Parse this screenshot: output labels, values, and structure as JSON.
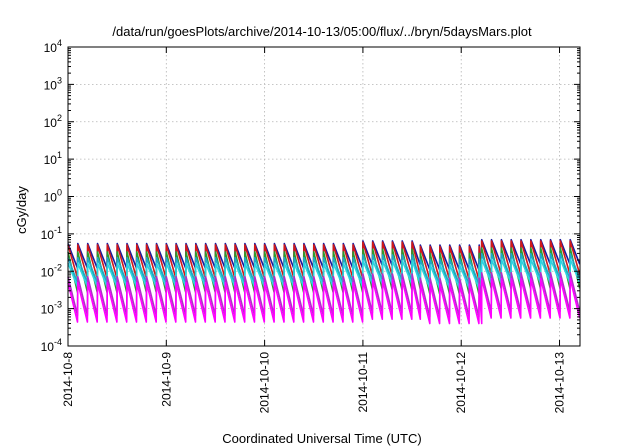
{
  "chart_data": {
    "type": "line",
    "title": "/data/run/goesPlots/archive/2014-10-13/05:00/flux/../bryn/5daysMars.plot",
    "xlabel": "Coordinated Universal Time (UTC)",
    "ylabel": "cGy/day",
    "y_scale": "log",
    "ylim": [
      0.0001,
      10000
    ],
    "xlim": [
      "2014-10-08",
      "2014-10-13T05:00"
    ],
    "grid": true,
    "legend": "none",
    "x_ticks": [
      "2014-10-8",
      "2014-10-9",
      "2014-10-10",
      "2014-10-11",
      "2014-10-12",
      "2014-10-13"
    ],
    "y_ticks": [
      {
        "value": 0.0001,
        "base": "10",
        "exp": "-4"
      },
      {
        "value": 0.001,
        "base": "10",
        "exp": "-3"
      },
      {
        "value": 0.01,
        "base": "10",
        "exp": "-2"
      },
      {
        "value": 0.1,
        "base": "10",
        "exp": "-1"
      },
      {
        "value": 1,
        "base": "10",
        "exp": "0"
      },
      {
        "value": 10,
        "base": "10",
        "exp": "1"
      },
      {
        "value": 100,
        "base": "10",
        "exp": "2"
      },
      {
        "value": 1000,
        "base": "10",
        "exp": "3"
      },
      {
        "value": 10000,
        "base": "10",
        "exp": "4"
      }
    ],
    "sawtooth": {
      "period_hours": 2.4,
      "segments": [
        {
          "start": "2014-10-08T00:00",
          "end": "2014-10-11T00:00",
          "peak": 0.055
        },
        {
          "start": "2014-10-11T00:00",
          "end": "2014-10-11T14:00",
          "peak": 0.065
        },
        {
          "start": "2014-10-11T14:00",
          "end": "2014-10-12T05:00",
          "peak": 0.05
        },
        {
          "start": "2014-10-12T05:00",
          "end": "2014-10-13T05:00",
          "peak": 0.07
        }
      ]
    },
    "series": [
      {
        "color": "#1a1aa0",
        "peak_factor": 1.0,
        "trough_factor": 0.22
      },
      {
        "color": "#d01818",
        "peak_factor": 0.92,
        "trough_factor": 0.12
      },
      {
        "color": "#2e9a2e",
        "peak_factor": 0.6,
        "trough_factor": 0.05
      },
      {
        "color": "#1fa7c8",
        "peak_factor": 0.42,
        "trough_factor": 0.09
      },
      {
        "color": "#2bd4e0",
        "peak_factor": 0.3,
        "trough_factor": 0.07
      },
      {
        "color": "#b030c8",
        "peak_factor": 0.13,
        "trough_factor": 0.012
      },
      {
        "color": "#ff00ff",
        "peak_factor": 0.09,
        "trough_factor": 0.008
      }
    ]
  }
}
